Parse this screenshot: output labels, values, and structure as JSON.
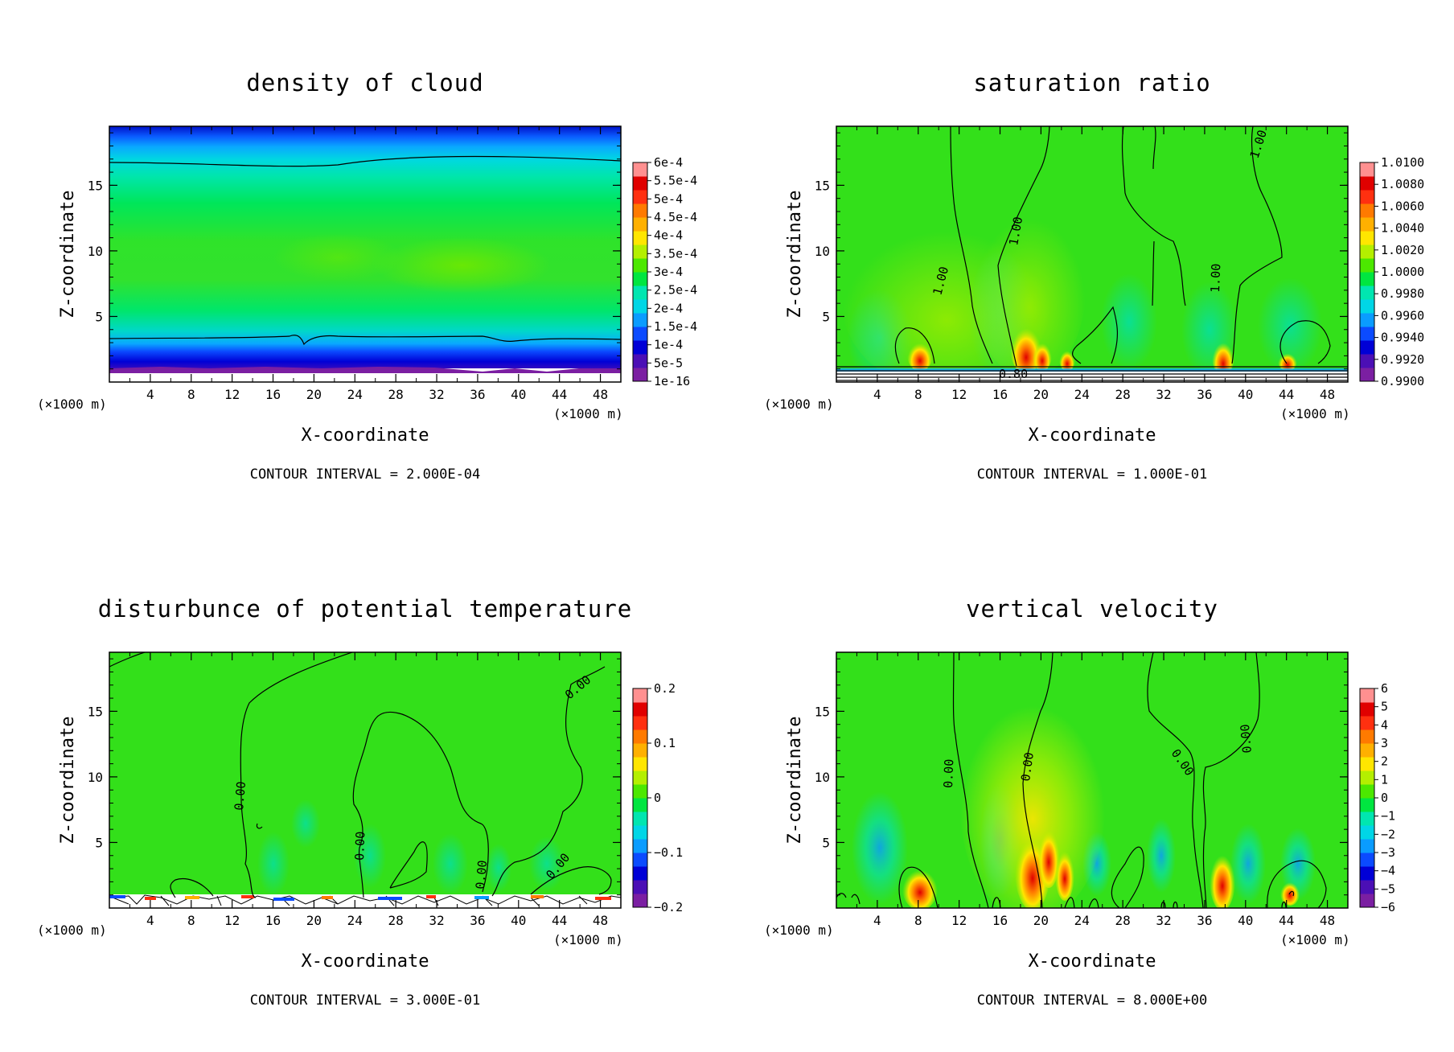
{
  "colors": {
    "palette": [
      "#7b1fa2",
      "#4b0fb5",
      "#0000d6",
      "#0b4bff",
      "#0a9cff",
      "#00d6e6",
      "#00e6b0",
      "#00e640",
      "#4ce800",
      "#b4ef00",
      "#ffe600",
      "#ffb000",
      "#ff7a00",
      "#ff3010",
      "#e00000",
      "#ff9090"
    ],
    "field_green": "#33e01a",
    "contour": "#000000",
    "background": "#ffffff"
  },
  "chart_data": [
    {
      "type": "heatmap",
      "title": "density of cloud",
      "xlabel": "X-coordinate",
      "ylabel": "Z-coordinate",
      "x_unit": "(×1000 m)",
      "x_unit_right": "(×1000 m)",
      "xticks": [
        "4",
        "8",
        "12",
        "16",
        "20",
        "24",
        "28",
        "32",
        "36",
        "40",
        "44",
        "48"
      ],
      "yticks": [
        "5",
        "10",
        "15"
      ],
      "xlim": [
        0,
        50
      ],
      "ylim": [
        0,
        19.5
      ],
      "colorbar": [
        "6e-4",
        "5.5e-4",
        "5e-4",
        "4.5e-4",
        "4e-4",
        "3.5e-4",
        "3e-4",
        "2.5e-4",
        "2e-4",
        "1.5e-4",
        "1e-4",
        "5e-5",
        "1e-16"
      ],
      "contour_interval": "CONTOUR INTERVAL = 2.000E-04",
      "contour_labels": []
    },
    {
      "type": "heatmap",
      "title": "saturation ratio",
      "xlabel": "X-coordinate",
      "ylabel": "Z-coordinate",
      "x_unit": "(×1000 m)",
      "x_unit_right": "(×1000 m)",
      "xticks": [
        "4",
        "8",
        "12",
        "16",
        "20",
        "24",
        "28",
        "32",
        "36",
        "40",
        "44",
        "48"
      ],
      "yticks": [
        "5",
        "10",
        "15"
      ],
      "xlim": [
        0,
        50
      ],
      "ylim": [
        0,
        19.5
      ],
      "colorbar": [
        "1.0100",
        "1.0080",
        "1.0060",
        "1.0040",
        "1.0020",
        "1.0000",
        "0.9980",
        "0.9960",
        "0.9940",
        "0.9920",
        "0.9900"
      ],
      "contour_interval": "CONTOUR INTERVAL = 1.000E-01",
      "contour_labels": [
        "1.00",
        "1.00",
        "1.00",
        "1.00",
        "0.80"
      ]
    },
    {
      "type": "heatmap",
      "title": "disturbunce of potential temperature",
      "xlabel": "X-coordinate",
      "ylabel": "Z-coordinate",
      "x_unit": "(×1000 m)",
      "x_unit_right": "(×1000 m)",
      "xticks": [
        "4",
        "8",
        "12",
        "16",
        "20",
        "24",
        "28",
        "32",
        "36",
        "40",
        "44",
        "48"
      ],
      "yticks": [
        "5",
        "10",
        "15"
      ],
      "xlim": [
        0,
        50
      ],
      "ylim": [
        0,
        19.5
      ],
      "colorbar": [
        "0.2",
        "0.1",
        "0",
        "−0.1",
        "−0.2"
      ],
      "contour_interval": "CONTOUR INTERVAL = 3.000E-01",
      "contour_labels": [
        "0.00",
        "0.00",
        "0.00",
        "0.00",
        "0.00"
      ]
    },
    {
      "type": "heatmap",
      "title": "vertical velocity",
      "xlabel": "X-coordinate",
      "ylabel": "Z-coordinate",
      "x_unit": "(×1000 m)",
      "x_unit_right": "(×1000 m)",
      "xticks": [
        "4",
        "8",
        "12",
        "16",
        "20",
        "24",
        "28",
        "32",
        "36",
        "40",
        "44",
        "48"
      ],
      "yticks": [
        "5",
        "10",
        "15"
      ],
      "xlim": [
        0,
        50
      ],
      "ylim": [
        0,
        19.5
      ],
      "colorbar": [
        "6",
        "5",
        "4",
        "3",
        "2",
        "1",
        "0",
        "−1",
        "−2",
        "−3",
        "−4",
        "−5",
        "−6"
      ],
      "contour_interval": "CONTOUR INTERVAL = 8.000E+00",
      "contour_labels": [
        "0.00",
        "0.00",
        "0.00",
        "0.00"
      ]
    }
  ]
}
